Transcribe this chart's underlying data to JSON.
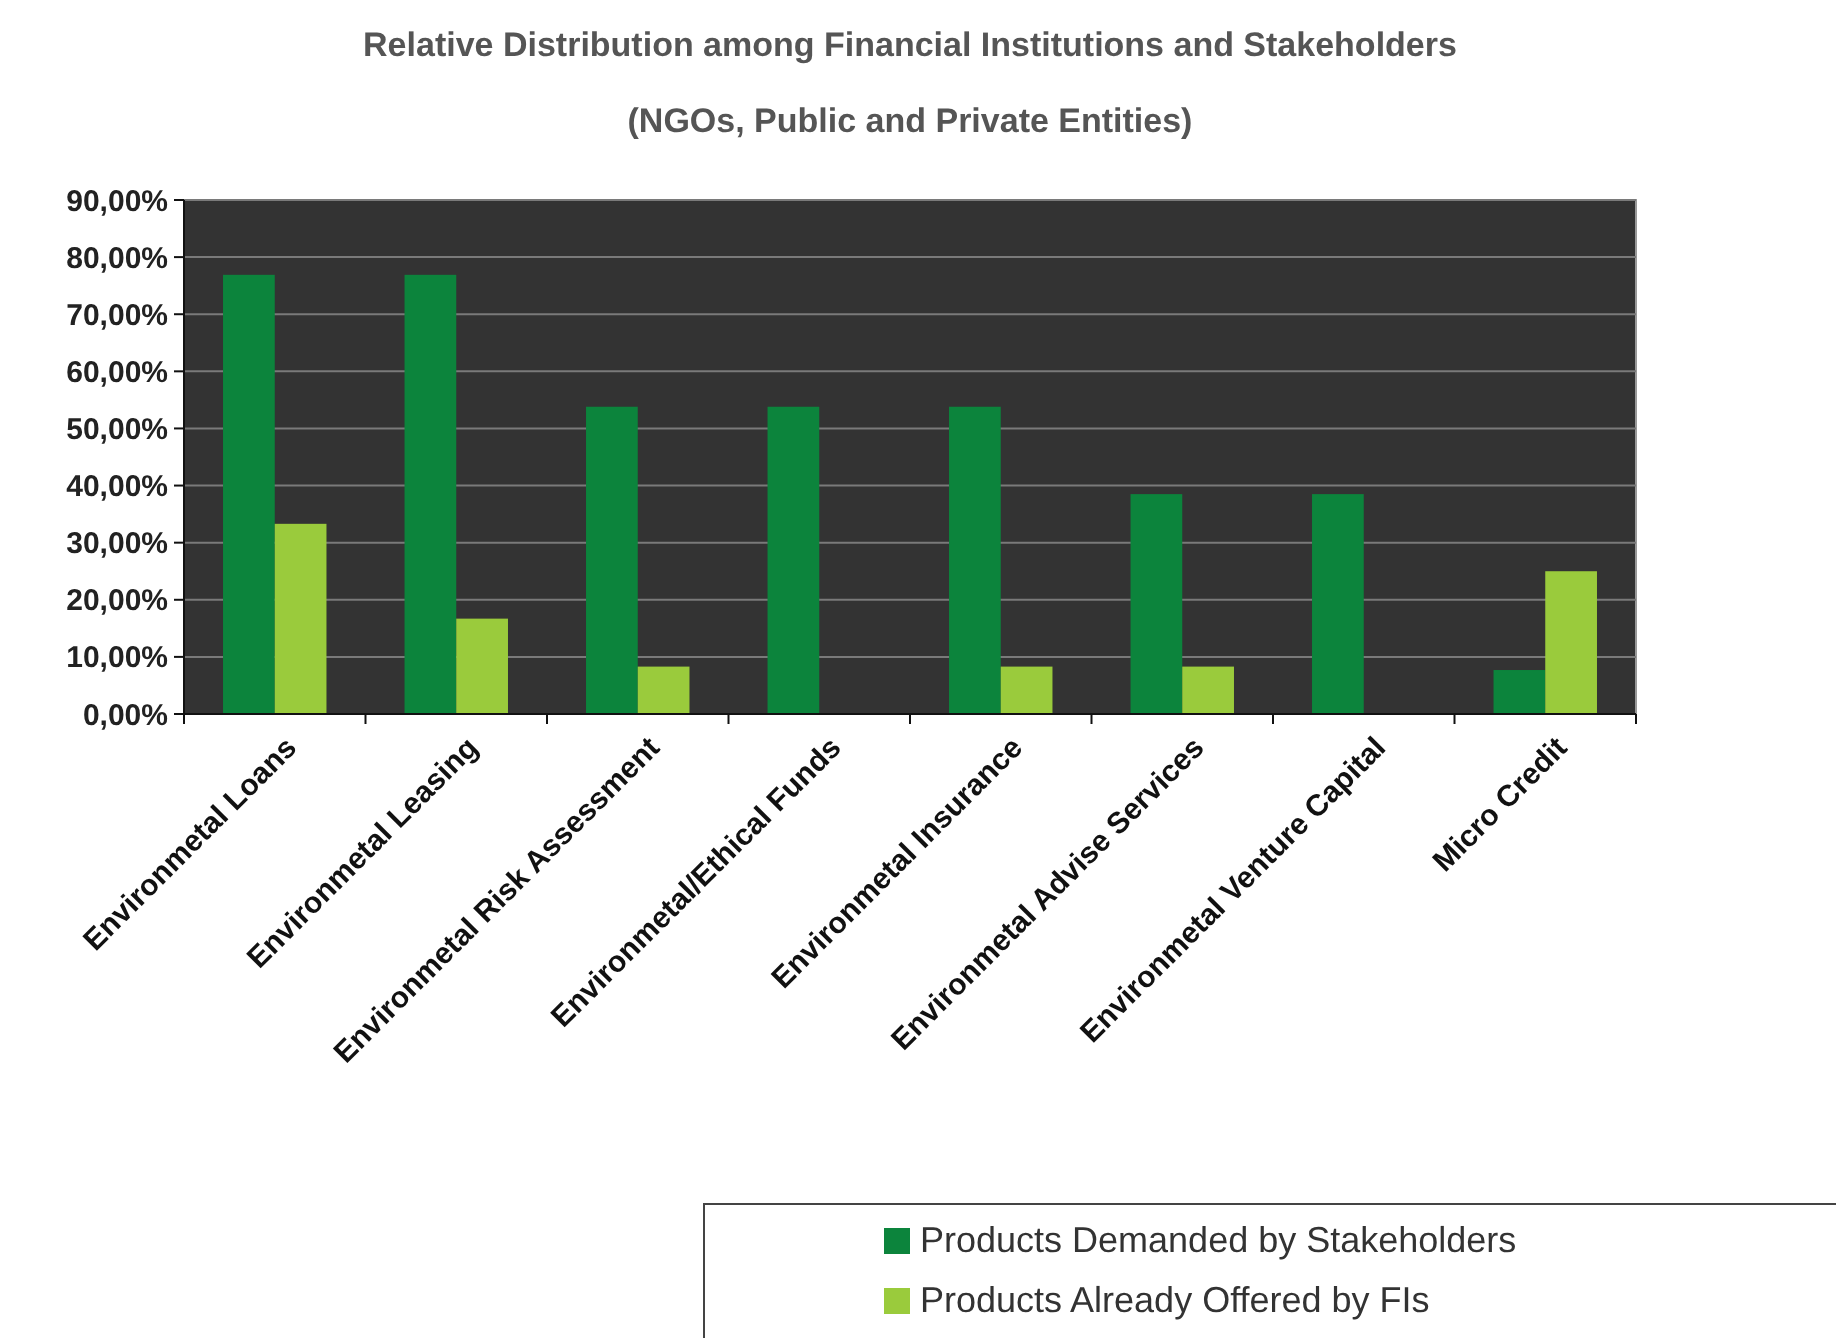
{
  "chart_data": {
    "type": "bar",
    "title": "Relative Distribution among Financial Institutions and Stakeholders",
    "subtitle": "(NGOs, Public and Private Entities)",
    "categories": [
      "Environmetal Loans",
      "Environmetal Leasing",
      "Environmetal Risk Assessment",
      "Environmetal/Ethical Funds",
      "Environmetal Insurance",
      "Environmetal Advise Services",
      "Environmetal Venture Capital",
      "Micro Credit"
    ],
    "series": [
      {
        "name": "Products Demanded by Stakeholders",
        "color": "#0c843c",
        "values": [
          76.9,
          76.9,
          53.8,
          53.8,
          53.8,
          38.5,
          38.5,
          7.7
        ]
      },
      {
        "name": "Products Already Offered by FIs",
        "color": "#9acb3c",
        "values": [
          33.3,
          16.7,
          8.3,
          0,
          8.3,
          8.3,
          0,
          25
        ]
      }
    ],
    "ylim": [
      0,
      90
    ],
    "yticks": [
      {
        "value": 0,
        "label": "0,00%"
      },
      {
        "value": 10,
        "label": "10,00%"
      },
      {
        "value": 20,
        "label": "20,00%"
      },
      {
        "value": 30,
        "label": "30,00%"
      },
      {
        "value": 40,
        "label": "40,00%"
      },
      {
        "value": 50,
        "label": "50,00%"
      },
      {
        "value": 60,
        "label": "60,00%"
      },
      {
        "value": 70,
        "label": "70,00%"
      },
      {
        "value": 80,
        "label": "80,00%"
      },
      {
        "value": 90,
        "label": "90,00%"
      }
    ],
    "grid": "y",
    "legend": "bottom right"
  }
}
